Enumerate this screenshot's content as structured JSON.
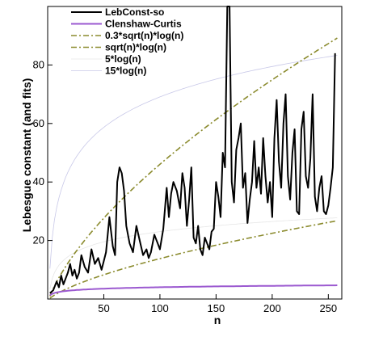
{
  "chart_data": {
    "type": "line",
    "xlabel": "n",
    "ylabel": "Lebesgue constant (and fits)",
    "xlim": [
      0,
      262
    ],
    "ylim": [
      0,
      100
    ],
    "x_ticks": [
      50,
      100,
      150,
      200,
      250
    ],
    "y_ticks": [
      20,
      40,
      60,
      80
    ],
    "legend_position": "top-left",
    "series": [
      {
        "name": "LebConst-so",
        "color": "#000000",
        "style": "solid-thick",
        "x": [
          2,
          5,
          8,
          10,
          12,
          14,
          16,
          18,
          20,
          22,
          24,
          26,
          28,
          30,
          33,
          36,
          39,
          42,
          45,
          48,
          50,
          52,
          55,
          58,
          60,
          62,
          64,
          66,
          68,
          70,
          73,
          76,
          79,
          82,
          85,
          88,
          90,
          92,
          95,
          98,
          100,
          103,
          106,
          108,
          110,
          112,
          115,
          118,
          120,
          122,
          124,
          126,
          128,
          130,
          132,
          134,
          136,
          138,
          140,
          142,
          144,
          146,
          148,
          150,
          152,
          154,
          156,
          158,
          160,
          162,
          164,
          166,
          168,
          170,
          172,
          174,
          176,
          178,
          180,
          182,
          184,
          186,
          188,
          190,
          192,
          194,
          196,
          198,
          200,
          202,
          204,
          206,
          208,
          210,
          212,
          214,
          216,
          218,
          220,
          222,
          224,
          226,
          228,
          230,
          232,
          234,
          236,
          238,
          240,
          242,
          244,
          246,
          248,
          250,
          252,
          254,
          256
        ],
        "values": [
          2,
          3,
          6,
          4,
          8,
          5,
          7,
          9,
          12,
          8,
          10,
          7,
          9,
          15,
          11,
          9,
          17,
          12,
          14,
          10,
          13,
          16,
          28,
          18,
          15,
          40,
          45,
          43,
          37,
          25,
          19,
          16,
          25,
          20,
          15,
          17,
          14,
          16,
          22,
          19,
          17,
          24,
          38,
          28,
          36,
          40,
          37,
          31,
          43,
          38,
          25,
          34,
          45,
          21,
          19,
          25,
          17,
          15,
          21,
          19,
          17,
          23,
          24,
          40,
          35,
          28,
          50,
          45,
          100,
          100,
          40,
          33,
          51,
          55,
          60,
          38,
          43,
          26,
          34,
          40,
          54,
          38,
          45,
          36,
          55,
          42,
          33,
          40,
          28,
          55,
          68,
          47,
          38,
          60,
          70,
          42,
          34,
          50,
          58,
          30,
          29,
          58,
          64,
          42,
          38,
          48,
          70,
          35,
          30,
          38,
          42,
          30,
          29,
          32,
          38,
          45,
          84
        ]
      },
      {
        "name": "Clenshaw-Curtis",
        "color": "#9b59d0",
        "style": "solid-thick"
      },
      {
        "name": "0.3*sqrt(n)*log(n)",
        "color": "#8b8b2e",
        "style": "dashdot"
      },
      {
        "name": "sqrt(n)*log(n)",
        "color": "#8b8b2e",
        "style": "dashdot"
      },
      {
        "name": "5*log(n)",
        "color": "#e6e6e6",
        "style": "solid-thin"
      },
      {
        "name": "15*log(n)",
        "color": "#c8c8e8",
        "style": "solid-thin"
      }
    ]
  }
}
